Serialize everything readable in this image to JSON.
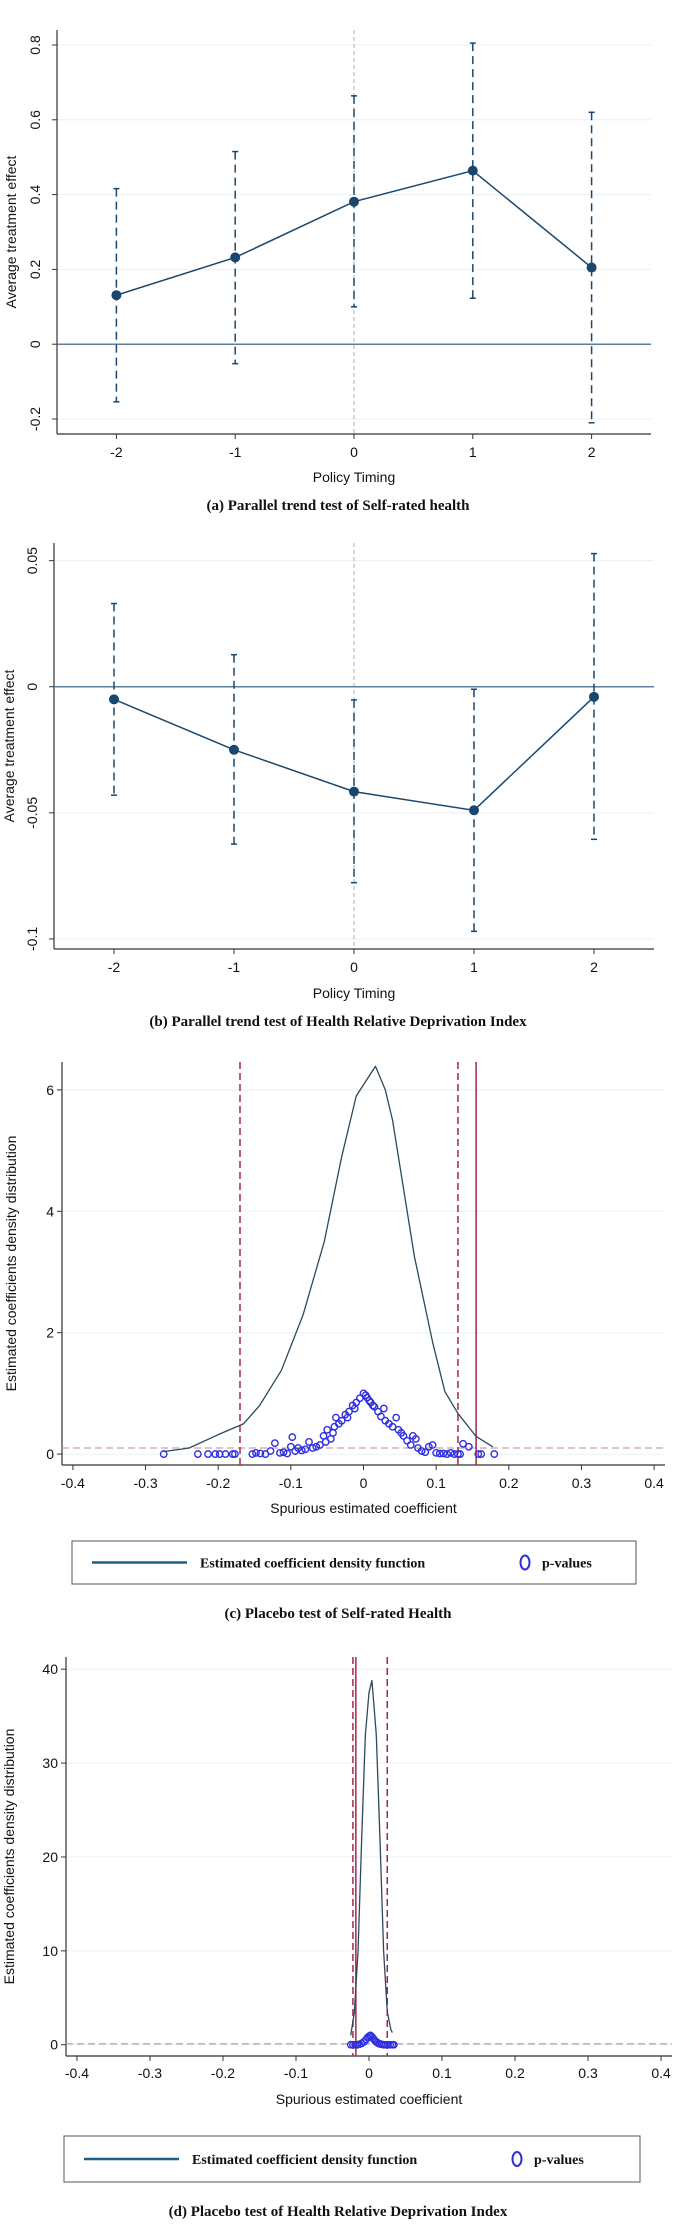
{
  "colors": {
    "series": "#1a476f",
    "zero_line": "#5b7f9c",
    "grid": "#eaf0f3",
    "ref_vline": "#b0b0b0",
    "threshold": "#a3284a",
    "pvalue": "#2f2fe0",
    "legend_line": "#1f5f85"
  },
  "chart_data": [
    {
      "type": "line",
      "panel": "a",
      "caption": "(a) Parallel trend test of Self-rated health",
      "xlabel": "Policy Timing",
      "ylabel": "Average treatment effect",
      "x": [
        -2,
        -1,
        0,
        1,
        2
      ],
      "xticks": [
        "-2",
        "-1",
        "0",
        "1",
        "2"
      ],
      "yticks": [
        -0.2,
        0,
        0.2,
        0.4,
        0.6,
        0.8
      ],
      "ytick_labels": [
        "-0.2",
        "0",
        "0.2",
        "0.4",
        "0.6",
        "0.8"
      ],
      "xlim": [
        -2.5,
        2.5
      ],
      "ylim": [
        -0.24,
        0.84
      ],
      "estimate": [
        0.131,
        0.232,
        0.381,
        0.464,
        0.205
      ],
      "ci_upper": [
        0.416,
        0.515,
        0.664,
        0.805,
        0.62
      ],
      "ci_lower": [
        -0.154,
        -0.052,
        0.1,
        0.123,
        -0.21
      ],
      "reference_x": 0,
      "reference_y": 0,
      "grid": true
    },
    {
      "type": "line",
      "panel": "b",
      "caption": "(b) Parallel trend test of Health Relative Deprivation Index",
      "xlabel": "Policy Timing",
      "ylabel": "Average treatment effect",
      "x": [
        -2,
        -1,
        0,
        1,
        2
      ],
      "xticks": [
        "-2",
        "-1",
        "0",
        "1",
        "2"
      ],
      "yticks": [
        -0.1,
        -0.05,
        0,
        0.05
      ],
      "ytick_labels": [
        "-0.1",
        "-0.05",
        "0",
        "0.05"
      ],
      "xlim": [
        -2.5,
        2.5
      ],
      "ylim": [
        -0.104,
        0.057
      ],
      "estimate": [
        -0.005,
        -0.025,
        -0.0416,
        -0.049,
        -0.004
      ],
      "ci_upper": [
        0.033,
        0.0127,
        -0.0052,
        -0.001,
        0.0528
      ],
      "ci_lower": [
        -0.043,
        -0.0624,
        -0.0777,
        -0.097,
        -0.0605
      ],
      "reference_x": 0,
      "reference_y": 0,
      "grid": true
    },
    {
      "type": "line",
      "panel": "c",
      "caption": "(c) Placebo test of Self-rated Health",
      "xlabel": "Spurious estimated coefficient",
      "ylabel": "Estimated coefficients density distribution",
      "xticks": [
        -0.4,
        -0.3,
        -0.2,
        -0.1,
        0,
        0.1,
        0.2,
        0.3,
        0.4
      ],
      "xtick_labels": [
        "-0.4",
        "-0.3",
        "-0.2",
        "-0.1",
        "0",
        "0.1",
        "0.2",
        "0.3",
        "0.4"
      ],
      "yticks": [
        0,
        2,
        4,
        6
      ],
      "ytick_labels": [
        "0",
        "2",
        "4",
        "6"
      ],
      "xlim": [
        -0.415,
        0.415
      ],
      "ylim": [
        -0.18,
        6.46
      ],
      "legend": {
        "density_label": "Estimated coefficient density function",
        "pvalue_label": "p-values",
        "placement": "bottom"
      },
      "density": [
        [
          -0.275,
          0.04
        ],
        [
          -0.24,
          0.1
        ],
        [
          -0.2,
          0.32
        ],
        [
          -0.165,
          0.5
        ],
        [
          -0.143,
          0.8
        ],
        [
          -0.113,
          1.38
        ],
        [
          -0.083,
          2.3
        ],
        [
          -0.054,
          3.5
        ],
        [
          -0.03,
          4.9
        ],
        [
          -0.01,
          5.9
        ],
        [
          0.0165,
          6.39
        ],
        [
          0.03,
          6.0
        ],
        [
          0.04,
          5.5
        ],
        [
          0.07,
          3.26
        ],
        [
          0.095,
          1.85
        ],
        [
          0.112,
          1.03
        ],
        [
          0.13,
          0.67
        ],
        [
          0.155,
          0.29
        ],
        [
          0.178,
          0.12
        ]
      ],
      "p_values": [
        [
          -0.275,
          0
        ],
        [
          -0.228,
          0
        ],
        [
          -0.214,
          0
        ],
        [
          -0.204,
          0
        ],
        [
          -0.198,
          0
        ],
        [
          -0.19,
          0
        ],
        [
          -0.18,
          0
        ],
        [
          -0.177,
          0
        ],
        [
          -0.153,
          0
        ],
        [
          -0.148,
          0.02
        ],
        [
          -0.142,
          0.01
        ],
        [
          -0.135,
          0
        ],
        [
          -0.128,
          0.05
        ],
        [
          -0.122,
          0.18
        ],
        [
          -0.115,
          0.02
        ],
        [
          -0.11,
          0.03
        ],
        [
          -0.105,
          0.01
        ],
        [
          -0.1,
          0.12
        ],
        [
          -0.098,
          0.28
        ],
        [
          -0.094,
          0.05
        ],
        [
          -0.09,
          0.1
        ],
        [
          -0.085,
          0.06
        ],
        [
          -0.08,
          0.08
        ],
        [
          -0.075,
          0.2
        ],
        [
          -0.07,
          0.1
        ],
        [
          -0.065,
          0.12
        ],
        [
          -0.06,
          0.15
        ],
        [
          -0.055,
          0.3
        ],
        [
          -0.052,
          0.2
        ],
        [
          -0.05,
          0.4
        ],
        [
          -0.045,
          0.25
        ],
        [
          -0.042,
          0.35
        ],
        [
          -0.04,
          0.45
        ],
        [
          -0.038,
          0.6
        ],
        [
          -0.034,
          0.5
        ],
        [
          -0.03,
          0.55
        ],
        [
          -0.025,
          0.65
        ],
        [
          -0.022,
          0.6
        ],
        [
          -0.02,
          0.7
        ],
        [
          -0.015,
          0.8
        ],
        [
          -0.012,
          0.75
        ],
        [
          -0.01,
          0.85
        ],
        [
          -0.005,
          0.92
        ],
        [
          0,
          1.0
        ],
        [
          0.003,
          0.97
        ],
        [
          0.005,
          0.93
        ],
        [
          0.008,
          0.88
        ],
        [
          0.01,
          0.85
        ],
        [
          0.013,
          0.8
        ],
        [
          0.015,
          0.78
        ],
        [
          0.02,
          0.7
        ],
        [
          0.024,
          0.62
        ],
        [
          0.028,
          0.75
        ],
        [
          0.03,
          0.55
        ],
        [
          0.035,
          0.5
        ],
        [
          0.04,
          0.45
        ],
        [
          0.045,
          0.6
        ],
        [
          0.048,
          0.4
        ],
        [
          0.052,
          0.35
        ],
        [
          0.055,
          0.3
        ],
        [
          0.06,
          0.22
        ],
        [
          0.065,
          0.15
        ],
        [
          0.068,
          0.3
        ],
        [
          0.072,
          0.25
        ],
        [
          0.075,
          0.1
        ],
        [
          0.08,
          0.05
        ],
        [
          0.085,
          0.03
        ],
        [
          0.09,
          0.12
        ],
        [
          0.095,
          0.15
        ],
        [
          0.1,
          0.02
        ],
        [
          0.105,
          0.01
        ],
        [
          0.11,
          0.01
        ],
        [
          0.115,
          0
        ],
        [
          0.12,
          0.02
        ],
        [
          0.125,
          0
        ],
        [
          0.13,
          0
        ],
        [
          0.133,
          0
        ],
        [
          0.137,
          0.17
        ],
        [
          0.145,
          0.12
        ],
        [
          0.158,
          0
        ],
        [
          0.162,
          0
        ],
        [
          0.18,
          0
        ]
      ],
      "threshold_dashed_x": [
        -0.17,
        0.13
      ],
      "threshold_solid_x": [
        0.155
      ],
      "threshold_dashed_y": 0.1,
      "grid": true
    },
    {
      "type": "line",
      "panel": "d",
      "caption": "(d) Placebo test of Health Relative Deprivation Index",
      "xlabel": "Spurious estimated coefficient",
      "ylabel": "Estimated coefficients density distribution",
      "xticks": [
        -0.4,
        -0.3,
        -0.2,
        -0.1,
        0,
        0.1,
        0.2,
        0.3,
        0.4
      ],
      "xtick_labels": [
        "-0.4",
        "-0.3",
        "-0.2",
        "-0.1",
        "0",
        "0.1",
        "0.2",
        "0.3",
        "0.4"
      ],
      "yticks": [
        0,
        10,
        20,
        30,
        40
      ],
      "ytick_labels": [
        "0",
        "10",
        "20",
        "30",
        "40"
      ],
      "xlim": [
        -0.415,
        0.415
      ],
      "ylim": [
        -1.2,
        41.3
      ],
      "legend": {
        "density_label": "Estimated coefficient density function",
        "pvalue_label": "p-values",
        "placement": "bottom"
      },
      "density": [
        [
          -0.025,
          1.0
        ],
        [
          -0.02,
          3.5
        ],
        [
          -0.015,
          10
        ],
        [
          -0.01,
          22
        ],
        [
          -0.005,
          33
        ],
        [
          0,
          37.5
        ],
        [
          0.004,
          38.8
        ],
        [
          0.01,
          33
        ],
        [
          0.015,
          22
        ],
        [
          0.02,
          10
        ],
        [
          0.025,
          3.5
        ],
        [
          0.03,
          1.6
        ],
        [
          0.032,
          1.3
        ]
      ],
      "p_values": [
        [
          -0.025,
          0
        ],
        [
          -0.022,
          0
        ],
        [
          -0.019,
          0
        ],
        [
          -0.016,
          0
        ],
        [
          -0.013,
          0.05
        ],
        [
          -0.01,
          0.15
        ],
        [
          -0.007,
          0.3
        ],
        [
          -0.004,
          0.55
        ],
        [
          -0.002,
          0.75
        ],
        [
          0,
          0.9
        ],
        [
          0.002,
          1.0
        ],
        [
          0.004,
          0.85
        ],
        [
          0.006,
          0.65
        ],
        [
          0.008,
          0.45
        ],
        [
          0.01,
          0.3
        ],
        [
          0.012,
          0.2
        ],
        [
          0.014,
          0.1
        ],
        [
          0.017,
          0.05
        ],
        [
          0.02,
          0
        ],
        [
          0.023,
          0
        ],
        [
          0.026,
          0
        ],
        [
          0.029,
          0
        ],
        [
          0.032,
          0
        ],
        [
          0.034,
          0
        ]
      ],
      "threshold_dashed_x": [
        -0.022,
        0.025
      ],
      "threshold_solid_x": [
        -0.018
      ],
      "threshold_dashed_y": 0.1,
      "grid": true
    }
  ]
}
